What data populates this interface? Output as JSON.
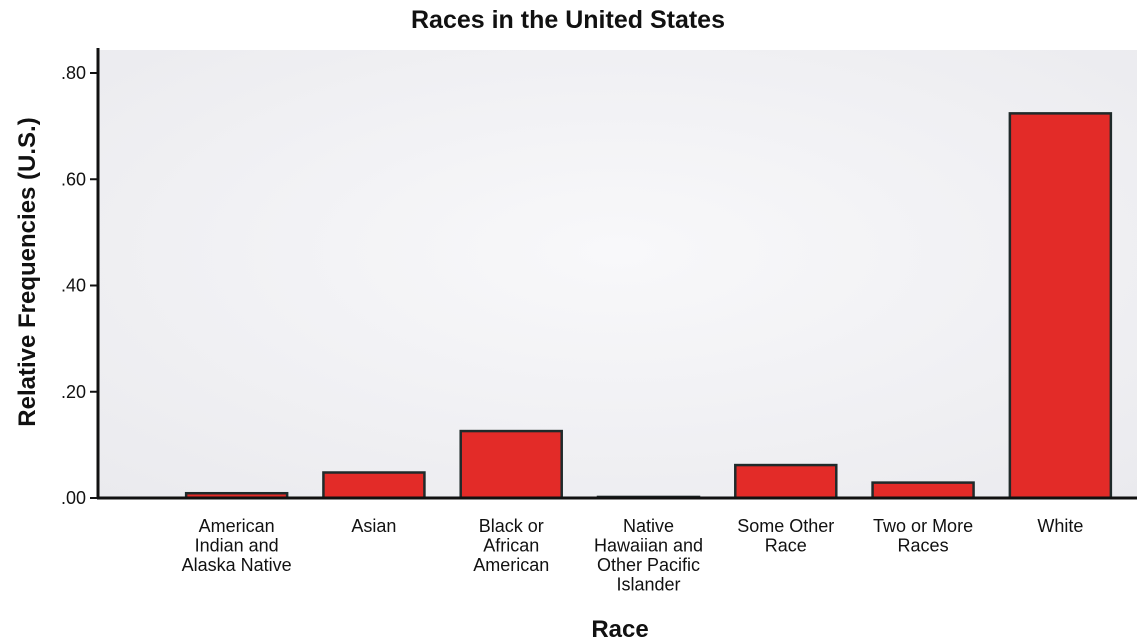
{
  "chart_data": {
    "type": "bar",
    "title": "Races in the United States",
    "xlabel": "Race",
    "ylabel": "Relative Frequencies (U.S.)",
    "ylim": [
      0,
      0.84
    ],
    "yticks": [
      ".00",
      ".20",
      ".40",
      ".60",
      ".80"
    ],
    "ytick_values": [
      0,
      0.2,
      0.4,
      0.6,
      0.8
    ],
    "categories": [
      "American Indian and Alaska Native",
      "Asian",
      "Black or African American",
      "Native Hawaiian and Other Pacific Islander",
      "Some Other Race",
      "Two or More Races",
      "White"
    ],
    "category_lines": [
      [
        "American",
        "Indian and",
        "Alaska Native"
      ],
      [
        "Asian"
      ],
      [
        "Black or",
        "African",
        "American"
      ],
      [
        "Native",
        "Hawaiian and",
        "Other Pacific",
        "Islander"
      ],
      [
        "Some Other",
        "Race"
      ],
      [
        "Two or More",
        "Races"
      ],
      [
        "White"
      ]
    ],
    "values": [
      0.009,
      0.048,
      0.126,
      0.002,
      0.062,
      0.029,
      0.724
    ],
    "grid": false,
    "legend": "none",
    "colors": {
      "bar_fill": "#e32b28",
      "bar_stroke": "#1f2a2a",
      "plot_background": "#f1f1f3",
      "axis": "#111111"
    }
  }
}
